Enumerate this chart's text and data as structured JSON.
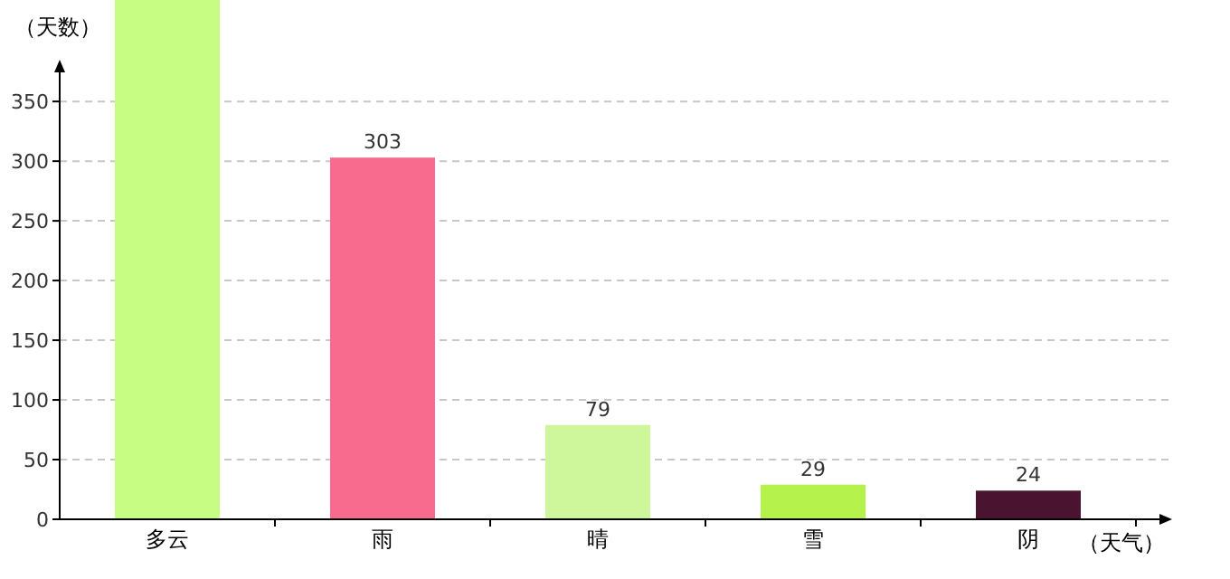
{
  "chart_data": {
    "type": "bar",
    "ylabel": "（天数）",
    "xlabel": "（天气）",
    "categories": [
      "多云",
      "雨",
      "晴",
      "雪",
      "阴"
    ],
    "values": [
      435,
      303,
      79,
      29,
      24
    ],
    "value_labels": [
      null,
      "303",
      "79",
      "29",
      "24"
    ],
    "colors": [
      "#c8fd84",
      "#f96b8e",
      "#cdf79a",
      "#b6f24c",
      "#4a1430"
    ],
    "ylim": [
      0,
      435
    ],
    "yticks": [
      0,
      50,
      100,
      150,
      200,
      250,
      300,
      350
    ],
    "grid": "y"
  }
}
